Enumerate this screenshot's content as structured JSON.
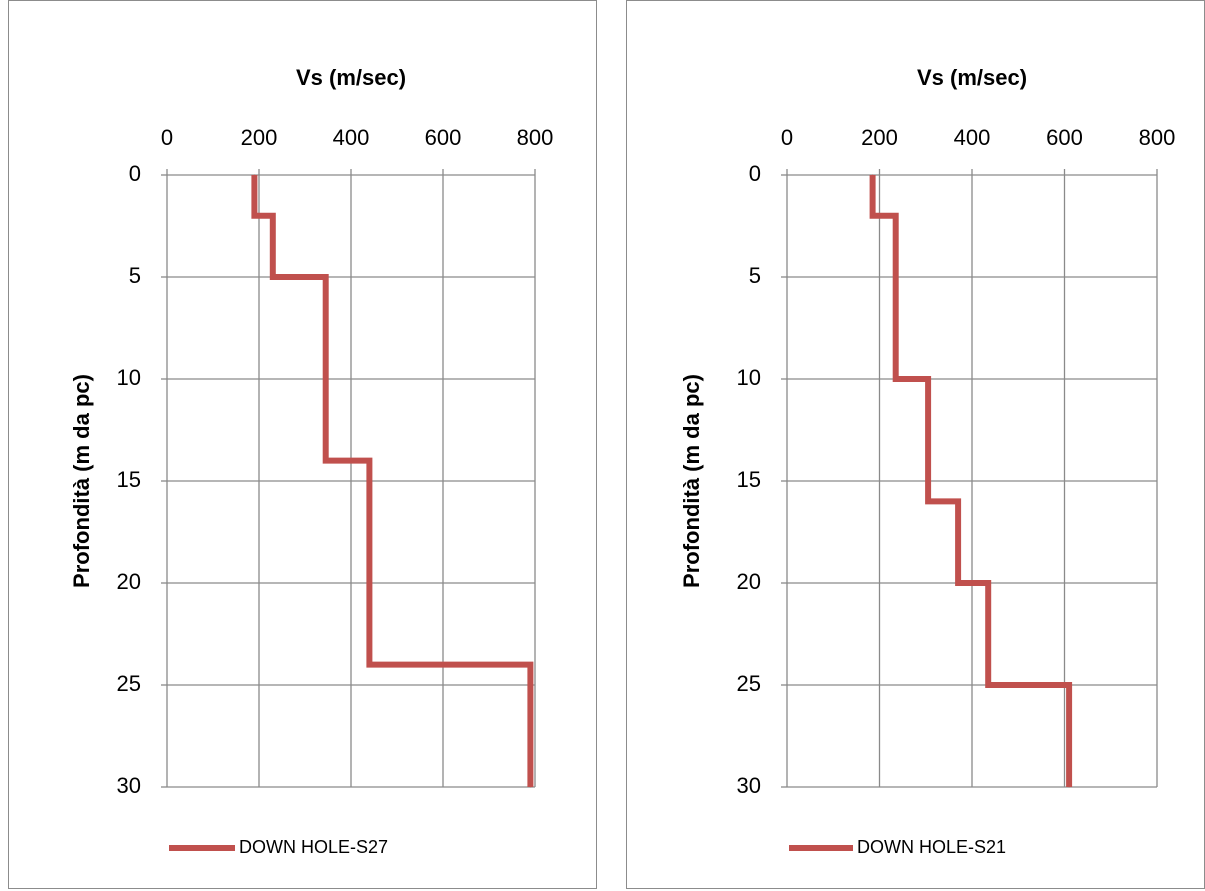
{
  "chart_data": [
    {
      "type": "line",
      "xlabel": "Vs (m/sec)",
      "ylabel": "Profondità (m da pc)",
      "xlim": [
        0,
        800
      ],
      "ylim": [
        0,
        30
      ],
      "y_inverted": true,
      "x_axis_position": "top",
      "x_ticks": [
        "0",
        "200",
        "400",
        "600",
        "800"
      ],
      "y_ticks": [
        "0",
        "5",
        "10",
        "15",
        "20",
        "25",
        "30"
      ],
      "grid": true,
      "legend_position": "bottom",
      "series": [
        {
          "name": "DOWN HOLE-S27",
          "color": "#c0504d",
          "points": [
            {
              "vs": 190,
              "depth": 0
            },
            {
              "vs": 190,
              "depth": 2
            },
            {
              "vs": 230,
              "depth": 2
            },
            {
              "vs": 230,
              "depth": 5
            },
            {
              "vs": 345,
              "depth": 5
            },
            {
              "vs": 345,
              "depth": 14
            },
            {
              "vs": 440,
              "depth": 14
            },
            {
              "vs": 440,
              "depth": 24
            },
            {
              "vs": 790,
              "depth": 24
            },
            {
              "vs": 790,
              "depth": 30
            }
          ]
        }
      ]
    },
    {
      "type": "line",
      "xlabel": "Vs (m/sec)",
      "ylabel": "Profondità (m da pc)",
      "xlim": [
        0,
        800
      ],
      "ylim": [
        0,
        30
      ],
      "y_inverted": true,
      "x_axis_position": "top",
      "x_ticks": [
        "0",
        "200",
        "400",
        "600",
        "800"
      ],
      "y_ticks": [
        "0",
        "5",
        "10",
        "15",
        "20",
        "25",
        "30"
      ],
      "grid": true,
      "legend_position": "bottom",
      "series": [
        {
          "name": "DOWN HOLE-S21",
          "color": "#c0504d",
          "points": [
            {
              "vs": 185,
              "depth": 0
            },
            {
              "vs": 185,
              "depth": 2
            },
            {
              "vs": 235,
              "depth": 2
            },
            {
              "vs": 235,
              "depth": 10
            },
            {
              "vs": 305,
              "depth": 10
            },
            {
              "vs": 305,
              "depth": 16
            },
            {
              "vs": 370,
              "depth": 16
            },
            {
              "vs": 370,
              "depth": 20
            },
            {
              "vs": 435,
              "depth": 20
            },
            {
              "vs": 435,
              "depth": 25
            },
            {
              "vs": 610,
              "depth": 25
            },
            {
              "vs": 610,
              "depth": 30
            }
          ]
        }
      ]
    }
  ]
}
